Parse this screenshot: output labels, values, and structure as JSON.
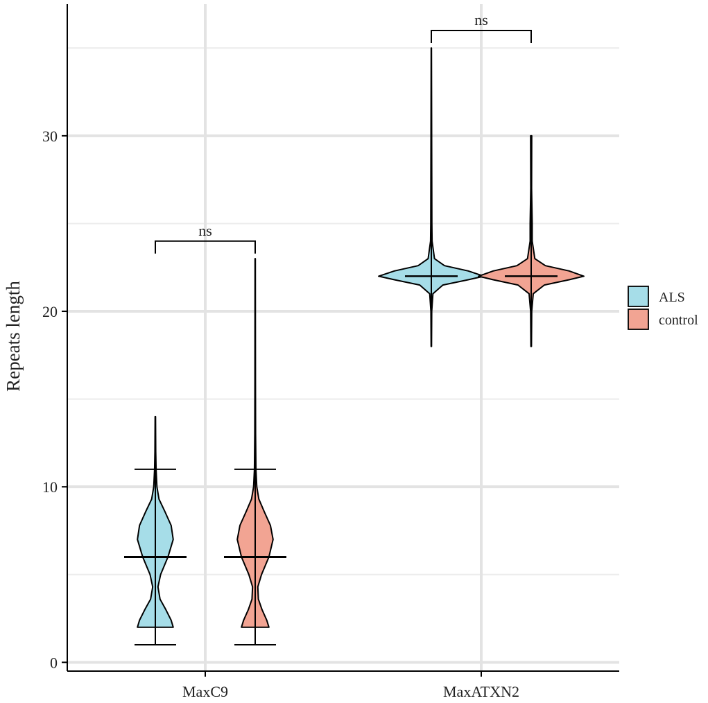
{
  "chart_data": {
    "type": "violin",
    "title": "",
    "xlabel": "",
    "ylabel": "Repeats length",
    "ylim": [
      -0.5,
      37.5
    ],
    "yticks": [
      0,
      10,
      20,
      30
    ],
    "grid": true,
    "legend_position": "right",
    "categories": [
      "MaxC9",
      "MaxATXN2"
    ],
    "series": [
      {
        "name": "ALS",
        "color": "#A6DDE8",
        "groups": [
          {
            "category": "MaxC9",
            "min": 1,
            "max": 14,
            "median": 6,
            "whisker_low": 1,
            "whisker_high": 11,
            "violin_range": [
              2,
              14
            ],
            "density": [
              [
                2,
                0.34
              ],
              [
                2.4,
                0.3
              ],
              [
                3,
                0.2
              ],
              [
                3.6,
                0.09
              ],
              [
                4.3,
                0.05
              ],
              [
                5,
                0.1
              ],
              [
                6,
                0.24
              ],
              [
                7,
                0.34
              ],
              [
                7.8,
                0.3
              ],
              [
                8.6,
                0.18
              ],
              [
                9.3,
                0.07
              ],
              [
                10,
                0.03
              ],
              [
                11,
                0.015
              ],
              [
                12,
                0.008
              ],
              [
                14,
                0.004
              ]
            ]
          },
          {
            "category": "MaxATXN2",
            "min": 18,
            "max": 35,
            "median": 22,
            "whisker_low": 18,
            "whisker_high": 35,
            "violin_range": [
              18,
              35
            ],
            "density": [
              [
                18,
                0.004
              ],
              [
                20,
                0.008
              ],
              [
                21,
                0.03
              ],
              [
                21.5,
                0.22
              ],
              [
                21.8,
                0.7
              ],
              [
                22,
                1.0
              ],
              [
                22.3,
                0.7
              ],
              [
                22.6,
                0.25
              ],
              [
                23,
                0.06
              ],
              [
                24,
                0.015
              ],
              [
                25,
                0.01
              ],
              [
                30,
                0.006
              ],
              [
                35,
                0.003
              ]
            ]
          }
        ]
      },
      {
        "name": "control",
        "color": "#F2A493",
        "groups": [
          {
            "category": "MaxC9",
            "min": 1,
            "max": 23,
            "median": 6,
            "whisker_low": 1,
            "whisker_high": 11,
            "violin_range": [
              2,
              23
            ],
            "density": [
              [
                2,
                0.26
              ],
              [
                2.4,
                0.22
              ],
              [
                3,
                0.13
              ],
              [
                3.6,
                0.06
              ],
              [
                4.3,
                0.05
              ],
              [
                5,
                0.12
              ],
              [
                6,
                0.26
              ],
              [
                7,
                0.34
              ],
              [
                7.8,
                0.29
              ],
              [
                8.6,
                0.17
              ],
              [
                9.3,
                0.07
              ],
              [
                10,
                0.03
              ],
              [
                11,
                0.015
              ],
              [
                13,
                0.008
              ],
              [
                16,
                0.005
              ],
              [
                23,
                0.003
              ]
            ]
          },
          {
            "category": "MaxATXN2",
            "min": 18,
            "max": 30,
            "median": 22,
            "whisker_low": 18,
            "whisker_high": 30,
            "violin_range": [
              18,
              30
            ],
            "density": [
              [
                18,
                0.005
              ],
              [
                20,
                0.01
              ],
              [
                21,
                0.04
              ],
              [
                21.5,
                0.25
              ],
              [
                21.8,
                0.72
              ],
              [
                22,
                1.0
              ],
              [
                22.3,
                0.72
              ],
              [
                22.6,
                0.27
              ],
              [
                23,
                0.07
              ],
              [
                24,
                0.02
              ],
              [
                25,
                0.02
              ],
              [
                27,
                0.008
              ],
              [
                30,
                0.01
              ]
            ]
          }
        ]
      }
    ],
    "annotations": [
      {
        "category": "MaxC9",
        "text": "ns",
        "y": 24
      },
      {
        "category": "MaxATXN2",
        "text": "ns",
        "y": 36
      }
    ]
  }
}
